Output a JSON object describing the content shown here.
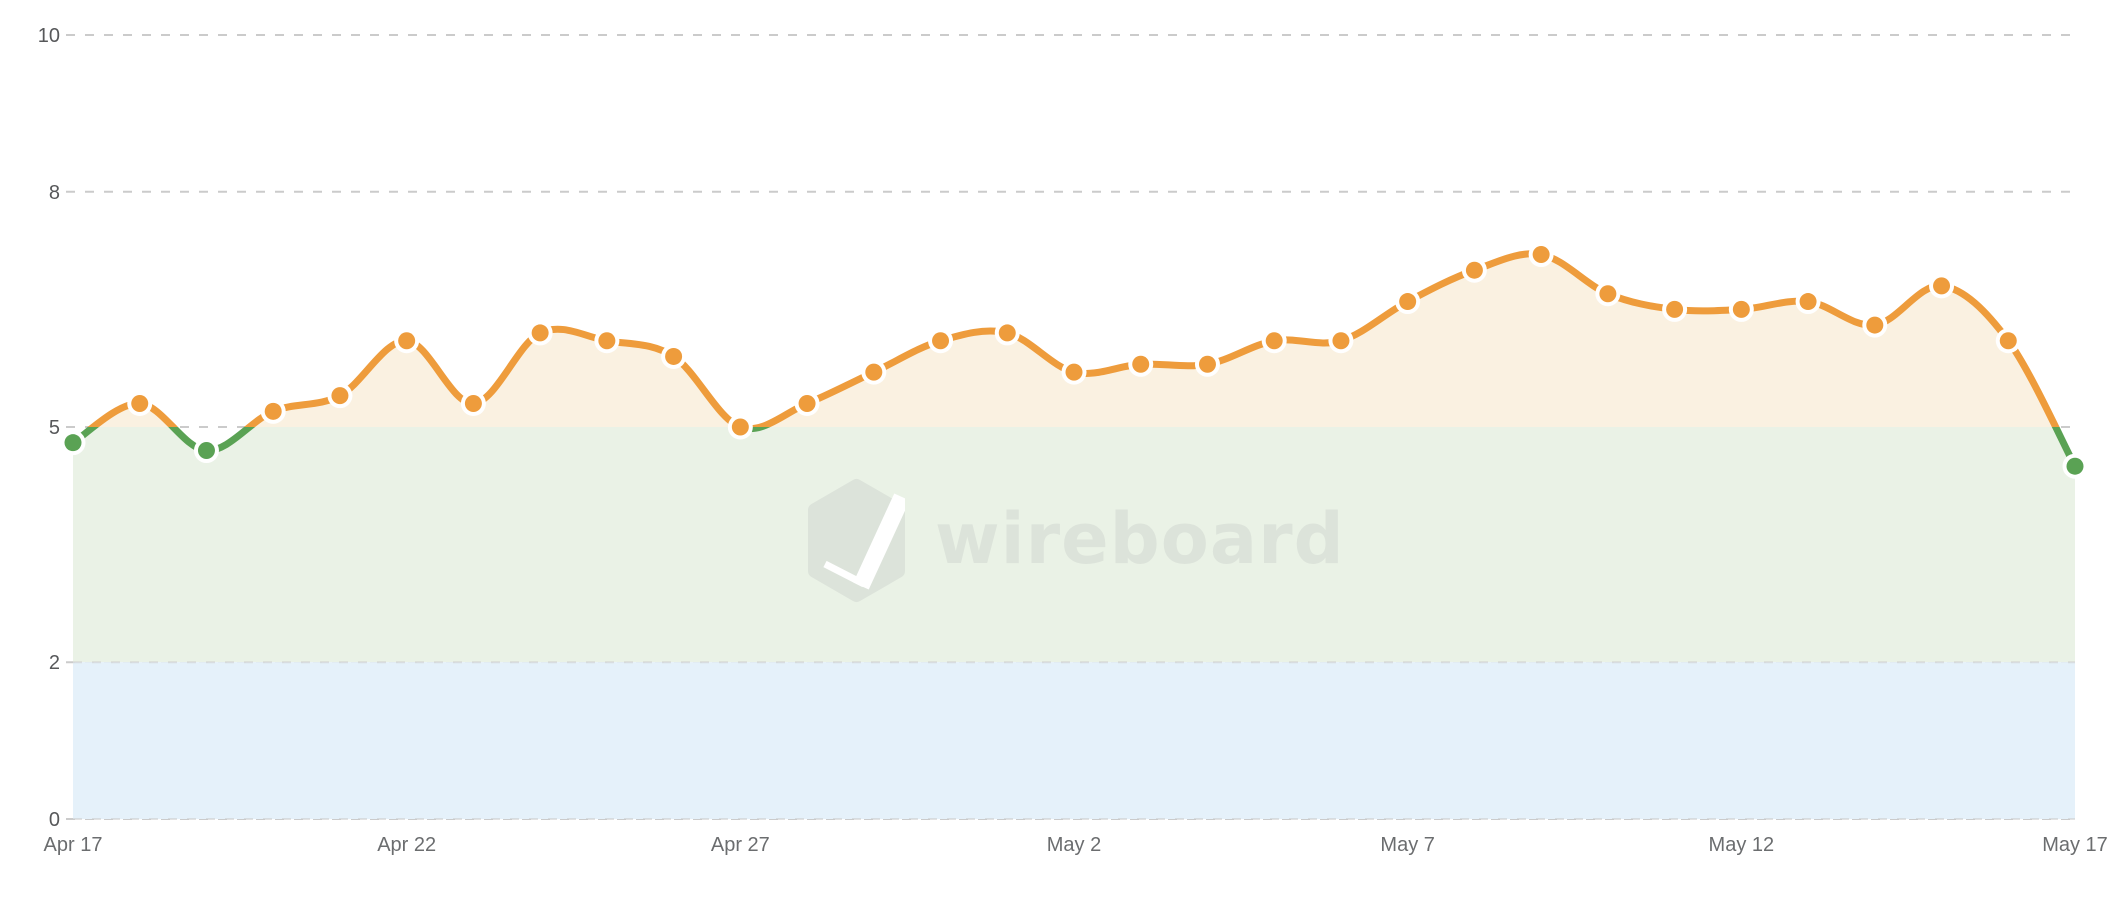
{
  "watermark": {
    "label": "wireboard"
  },
  "colors": {
    "line_above_threshold": "#EE9C3C",
    "line_below_threshold": "#5AA254",
    "fill_above_threshold": "#FAF1E1",
    "zone_green": "#EAF2E6",
    "zone_blue": "#E5F1FA",
    "gridline": "#CBCBCB",
    "y_label": "#57585a",
    "x_label": "#6b6d6f",
    "watermark_gray": "#DCE3DA",
    "point_halo": "#FFFFFF"
  },
  "chart_data": {
    "type": "line",
    "title": "",
    "xlabel": "",
    "ylabel": "",
    "x": [
      "Apr 17",
      "Apr 18",
      "Apr 19",
      "Apr 20",
      "Apr 21",
      "Apr 22",
      "Apr 23",
      "Apr 24",
      "Apr 25",
      "Apr 26",
      "Apr 27",
      "Apr 28",
      "Apr 29",
      "Apr 30",
      "May 1",
      "May 2",
      "May 3",
      "May 4",
      "May 5",
      "May 6",
      "May 7",
      "May 8",
      "May 9",
      "May 10",
      "May 11",
      "May 12",
      "May 13",
      "May 14",
      "May 15",
      "May 16",
      "May 17"
    ],
    "values": [
      4.8,
      5.3,
      4.7,
      5.2,
      5.4,
      6.1,
      5.3,
      6.2,
      6.1,
      5.9,
      5.0,
      5.3,
      5.7,
      6.1,
      6.2,
      5.7,
      5.8,
      5.8,
      6.1,
      6.1,
      6.6,
      7.0,
      7.2,
      6.7,
      6.5,
      6.5,
      6.6,
      6.3,
      6.8,
      6.1,
      4.5
    ],
    "ylim": [
      0,
      10
    ],
    "y_ticks": [
      0,
      2,
      5,
      8,
      10
    ],
    "x_tick_indices": [
      0,
      5,
      10,
      15,
      20,
      25,
      30
    ],
    "x_tick_labels": [
      "Apr 17",
      "Apr 22",
      "Apr 27",
      "May 2",
      "May 7",
      "May 12",
      "May 17"
    ],
    "grid": "dashed-horizontal",
    "legend": "none",
    "threshold": 5,
    "zones": [
      {
        "range": [
          0,
          2
        ],
        "color": "#E5F1FA",
        "name": "low-zone"
      },
      {
        "range": [
          2,
          5
        ],
        "color": "#EAF2E6",
        "name": "mid-zone"
      },
      {
        "range": [
          5,
          10
        ],
        "color": "#FAF1E1",
        "name": "high-zone"
      }
    ],
    "point_color_rule": "green below threshold 5, orange at or above 5"
  }
}
